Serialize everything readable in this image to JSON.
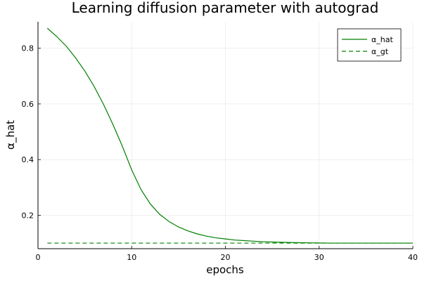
{
  "chart_data": {
    "type": "line",
    "title": "Learning diffusion parameter with autograd",
    "xlabel": "epochs",
    "ylabel": "α_hat",
    "xlim": [
      0,
      40
    ],
    "ylim": [
      0.08,
      0.895
    ],
    "xticks": [
      0,
      10,
      20,
      30,
      40
    ],
    "yticks": [
      0.2,
      0.4,
      0.6,
      0.8
    ],
    "xtick_labels": [
      "0",
      "10",
      "20",
      "30",
      "40"
    ],
    "ytick_labels": [
      "0.2",
      "0.4",
      "0.6",
      "0.8"
    ],
    "grid": true,
    "legend_position": "top-right",
    "series": [
      {
        "name": "α_hat",
        "color": "#008000",
        "dash": "solid",
        "x": [
          1,
          2,
          3,
          4,
          5,
          6,
          7,
          8,
          9,
          10,
          11,
          12,
          13,
          14,
          15,
          16,
          17,
          18,
          19,
          20,
          21,
          22,
          23,
          24,
          25,
          26,
          27,
          28,
          29,
          30,
          31,
          32,
          33,
          34,
          35,
          36,
          37,
          38,
          39,
          40
        ],
        "values": [
          0.872,
          0.842,
          0.808,
          0.766,
          0.718,
          0.662,
          0.598,
          0.526,
          0.448,
          0.363,
          0.292,
          0.24,
          0.203,
          0.177,
          0.158,
          0.144,
          0.133,
          0.125,
          0.119,
          0.115,
          0.111,
          0.109,
          0.107,
          0.105,
          0.104,
          0.103,
          0.102,
          0.1015,
          0.101,
          0.1005,
          0.1,
          0.1,
          0.1,
          0.1,
          0.1,
          0.1,
          0.1,
          0.1,
          0.1,
          0.1
        ]
      },
      {
        "name": "α_gt",
        "color": "#008000",
        "dash": "dashed",
        "x": [
          1,
          40
        ],
        "values": [
          0.1,
          0.1
        ]
      }
    ]
  }
}
